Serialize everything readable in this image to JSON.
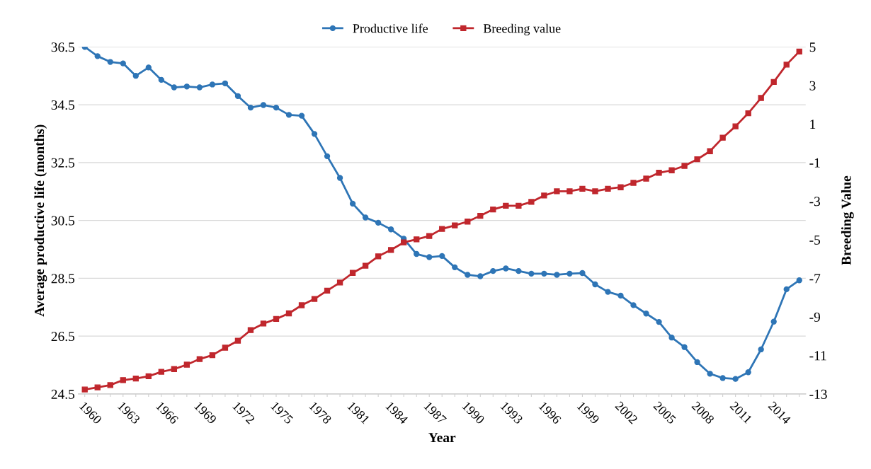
{
  "chart_data": {
    "type": "line",
    "xlabel": "Year",
    "ylabel": "Average productive life (months)",
    "y2label": "Breeding Value",
    "categories": [
      "1960",
      null,
      null,
      "1963",
      null,
      null,
      "1966",
      null,
      null,
      "1969",
      null,
      null,
      "1972",
      null,
      null,
      "1975",
      null,
      null,
      "1978",
      null,
      null,
      "1981",
      null,
      null,
      "1984",
      null,
      null,
      "1987",
      null,
      null,
      "1990",
      null,
      null,
      "1993",
      null,
      null,
      "1996",
      null,
      null,
      "1999",
      null,
      null,
      "2002",
      null,
      null,
      "2005",
      null,
      null,
      "2008",
      null,
      null,
      "2011",
      null,
      null,
      "2014",
      null,
      null
    ],
    "series": [
      {
        "name": "Productive life",
        "color": "#2e75b6",
        "marker": "circle",
        "values": [
          36.5,
          36.18,
          35.98,
          35.93,
          35.5,
          35.79,
          35.36,
          35.1,
          35.13,
          35.1,
          35.2,
          35.24,
          34.8,
          34.4,
          34.49,
          34.4,
          34.15,
          34.12,
          33.49,
          32.72,
          31.97,
          31.08,
          30.6,
          30.42,
          30.19,
          29.87,
          29.34,
          29.23,
          29.27,
          28.88,
          28.62,
          28.57,
          28.75,
          28.84,
          28.75,
          28.66,
          28.66,
          28.62,
          28.66,
          28.68,
          28.29,
          28.03,
          27.9,
          27.57,
          27.28,
          26.99,
          26.45,
          26.12,
          25.6,
          25.2,
          25.05,
          25.02,
          25.25,
          26.04,
          27.0,
          28.12,
          28.43
        ]
      },
      {
        "name": "Breeding value",
        "color": "#c0272d",
        "marker": "square",
        "axis": "y2",
        "values": [
          -12.77,
          -12.66,
          -12.54,
          -12.28,
          -12.2,
          -12.08,
          -11.85,
          -11.71,
          -11.48,
          -11.19,
          -10.99,
          -10.6,
          -10.24,
          -9.69,
          -9.35,
          -9.11,
          -8.82,
          -8.4,
          -8.07,
          -7.64,
          -7.22,
          -6.72,
          -6.35,
          -5.86,
          -5.53,
          -5.14,
          -4.98,
          -4.81,
          -4.44,
          -4.26,
          -4.06,
          -3.76,
          -3.43,
          -3.24,
          -3.24,
          -3.04,
          -2.71,
          -2.49,
          -2.49,
          -2.36,
          -2.49,
          -2.36,
          -2.28,
          -2.05,
          -1.83,
          -1.53,
          -1.4,
          -1.17,
          -0.83,
          -0.41,
          0.29,
          0.88,
          1.56,
          2.35,
          3.18,
          4.08,
          4.76
        ]
      }
    ],
    "ylim": [
      24.5,
      36.5
    ],
    "yticks": [
      24.5,
      26.5,
      28.5,
      30.5,
      32.5,
      34.5,
      36.5
    ],
    "y2lim": [
      -13,
      5
    ],
    "y2ticks": [
      -13,
      -11,
      -9,
      -7,
      -5,
      -3,
      -1,
      1,
      3,
      5
    ],
    "grid": "y",
    "legend": "top",
    "line_style": "solid"
  }
}
